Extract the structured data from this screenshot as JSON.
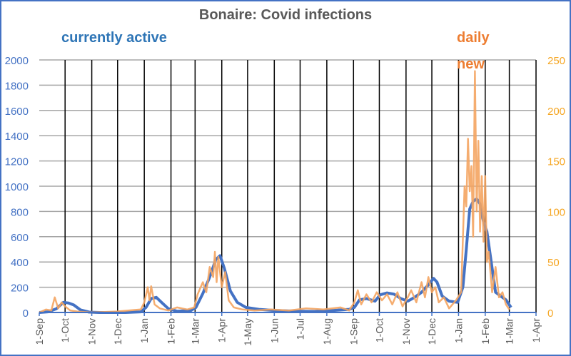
{
  "chart_data": {
    "type": "line",
    "title": "Bonaire: Covid infections",
    "annotations": [
      "currently active",
      "daily new"
    ],
    "x_tick_labels": [
      "1-Sep",
      "1-Oct",
      "1-Nov",
      "1-Dec",
      "1-Jan",
      "1-Feb",
      "1-Mar",
      "1-Apr",
      "1-May",
      "1-Jun",
      "1-Jul",
      "1-Aug",
      "1-Sep",
      "1-Oct",
      "1-Nov",
      "1-Dec",
      "1-Jan",
      "1-Feb",
      "1-Mar",
      "1-Apr"
    ],
    "x_tick_days": [
      0,
      30,
      61,
      91,
      122,
      153,
      181,
      212,
      242,
      273,
      303,
      334,
      365,
      395,
      426,
      456,
      487,
      518,
      546,
      577
    ],
    "y_left": {
      "min": 0,
      "max": 2000,
      "step": 200,
      "ticks": [
        "0",
        "200",
        "400",
        "600",
        "800",
        "1000",
        "1200",
        "1400",
        "1600",
        "1800",
        "2000"
      ]
    },
    "y_right": {
      "min": 0,
      "max": 250,
      "step": 50,
      "ticks": [
        "0",
        "50",
        "100",
        "150",
        "200",
        "250"
      ]
    },
    "grid": true,
    "series": [
      {
        "name": "currently active",
        "axis": "left",
        "color": "#4472c4",
        "points": [
          [
            0,
            0
          ],
          [
            10,
            5
          ],
          [
            20,
            30
          ],
          [
            28,
            80
          ],
          [
            34,
            75
          ],
          [
            40,
            60
          ],
          [
            48,
            20
          ],
          [
            58,
            3
          ],
          [
            70,
            0
          ],
          [
            100,
            0
          ],
          [
            118,
            5
          ],
          [
            124,
            40
          ],
          [
            130,
            110
          ],
          [
            136,
            120
          ],
          [
            142,
            80
          ],
          [
            150,
            30
          ],
          [
            160,
            10
          ],
          [
            176,
            15
          ],
          [
            182,
            40
          ],
          [
            190,
            150
          ],
          [
            198,
            280
          ],
          [
            205,
            420
          ],
          [
            210,
            450
          ],
          [
            215,
            350
          ],
          [
            222,
            170
          ],
          [
            230,
            80
          ],
          [
            240,
            40
          ],
          [
            255,
            25
          ],
          [
            275,
            15
          ],
          [
            300,
            10
          ],
          [
            320,
            8
          ],
          [
            340,
            15
          ],
          [
            360,
            25
          ],
          [
            366,
            40
          ],
          [
            372,
            100
          ],
          [
            380,
            110
          ],
          [
            390,
            90
          ],
          [
            396,
            140
          ],
          [
            404,
            155
          ],
          [
            412,
            145
          ],
          [
            420,
            110
          ],
          [
            428,
            90
          ],
          [
            436,
            120
          ],
          [
            444,
            160
          ],
          [
            452,
            220
          ],
          [
            458,
            270
          ],
          [
            462,
            240
          ],
          [
            468,
            130
          ],
          [
            476,
            90
          ],
          [
            486,
            80
          ],
          [
            492,
            200
          ],
          [
            496,
            500
          ],
          [
            500,
            820
          ],
          [
            504,
            880
          ],
          [
            508,
            900
          ],
          [
            512,
            860
          ],
          [
            516,
            720
          ],
          [
            520,
            640
          ],
          [
            526,
            350
          ],
          [
            530,
            160
          ],
          [
            536,
            130
          ],
          [
            542,
            100
          ],
          [
            548,
            40
          ]
        ]
      },
      {
        "name": "daily new",
        "axis": "right",
        "color": "#f4a460",
        "points": [
          [
            0,
            0
          ],
          [
            8,
            3
          ],
          [
            14,
            2
          ],
          [
            18,
            15
          ],
          [
            22,
            4
          ],
          [
            26,
            10
          ],
          [
            30,
            6
          ],
          [
            36,
            2
          ],
          [
            44,
            1
          ],
          [
            60,
            0
          ],
          [
            90,
            1
          ],
          [
            118,
            3
          ],
          [
            122,
            10
          ],
          [
            126,
            25
          ],
          [
            128,
            12
          ],
          [
            130,
            26
          ],
          [
            134,
            8
          ],
          [
            140,
            4
          ],
          [
            150,
            2
          ],
          [
            160,
            5
          ],
          [
            172,
            3
          ],
          [
            180,
            5
          ],
          [
            184,
            18
          ],
          [
            190,
            30
          ],
          [
            194,
            20
          ],
          [
            198,
            45
          ],
          [
            202,
            35
          ],
          [
            204,
            60
          ],
          [
            206,
            30
          ],
          [
            208,
            55
          ],
          [
            212,
            25
          ],
          [
            216,
            40
          ],
          [
            220,
            12
          ],
          [
            226,
            5
          ],
          [
            236,
            3
          ],
          [
            250,
            2
          ],
          [
            270,
            3
          ],
          [
            290,
            2
          ],
          [
            310,
            4
          ],
          [
            330,
            3
          ],
          [
            350,
            5
          ],
          [
            360,
            2
          ],
          [
            366,
            10
          ],
          [
            370,
            22
          ],
          [
            374,
            8
          ],
          [
            380,
            18
          ],
          [
            386,
            10
          ],
          [
            392,
            20
          ],
          [
            398,
            12
          ],
          [
            404,
            18
          ],
          [
            410,
            8
          ],
          [
            416,
            20
          ],
          [
            422,
            6
          ],
          [
            428,
            15
          ],
          [
            432,
            22
          ],
          [
            438,
            10
          ],
          [
            444,
            30
          ],
          [
            448,
            15
          ],
          [
            452,
            35
          ],
          [
            456,
            20
          ],
          [
            460,
            25
          ],
          [
            464,
            10
          ],
          [
            470,
            15
          ],
          [
            476,
            4
          ],
          [
            484,
            12
          ],
          [
            490,
            20
          ],
          [
            494,
            125
          ],
          [
            496,
            105
          ],
          [
            498,
            172
          ],
          [
            500,
            120
          ],
          [
            502,
            145
          ],
          [
            504,
            75
          ],
          [
            506,
            239
          ],
          [
            508,
            100
          ],
          [
            510,
            170
          ],
          [
            512,
            80
          ],
          [
            514,
            135
          ],
          [
            516,
            70
          ],
          [
            518,
            135
          ],
          [
            520,
            50
          ],
          [
            522,
            60
          ],
          [
            526,
            20
          ],
          [
            530,
            45
          ],
          [
            534,
            15
          ],
          [
            538,
            20
          ],
          [
            542,
            8
          ],
          [
            546,
            3
          ]
        ]
      }
    ]
  }
}
